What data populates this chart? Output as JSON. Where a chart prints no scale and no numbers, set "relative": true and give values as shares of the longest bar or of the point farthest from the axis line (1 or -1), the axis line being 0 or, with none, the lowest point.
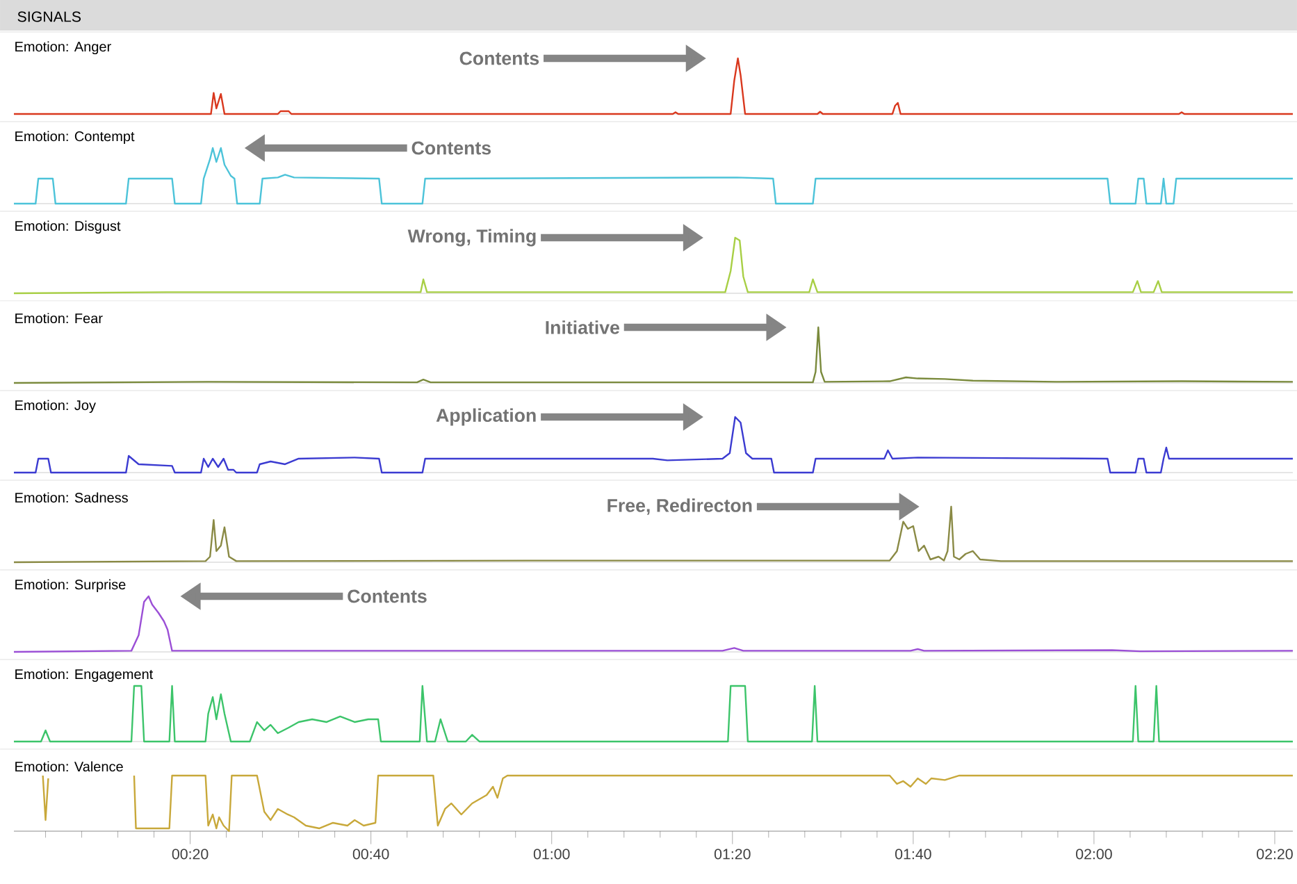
{
  "chart_data": [
    {
      "type": "line",
      "title": "Emotion: Anger",
      "relative": true,
      "tick_labels": false,
      "xlim": [
        0.5,
        142
      ],
      "color": "#d9381e",
      "annotations": [
        "SIGNALS",
        "Contents"
      ],
      "x": [
        0.5,
        22.3,
        22.6,
        22.9,
        23.4,
        23.8,
        29.7,
        30.0,
        30.9,
        31.2,
        73.4,
        73.7,
        74.0,
        79.8,
        80.2,
        80.6,
        80.9,
        81.4,
        89.4,
        89.7,
        90.0,
        97.7,
        98.0,
        98.3,
        98.6,
        129.4,
        129.7,
        130.0,
        142
      ],
      "values": [
        0,
        0,
        0.38,
        0.1,
        0.36,
        0,
        0,
        0.05,
        0.05,
        0,
        0,
        0.03,
        0,
        0,
        0.6,
        1,
        0.7,
        0,
        0,
        0.04,
        0,
        0,
        0.15,
        0.2,
        0,
        0,
        0.03,
        0,
        0
      ]
    },
    {
      "type": "line",
      "title": "Emotion: Contempt",
      "relative": true,
      "tick_labels": false,
      "xlim": [
        0.5,
        142
      ],
      "color": "#4cc3d9",
      "annotations": [
        "Contents"
      ],
      "x": [
        0.5,
        2.9,
        3.2,
        4.8,
        5.1,
        12.9,
        13.2,
        18.0,
        18.3,
        21.2,
        21.5,
        22.2,
        22.5,
        22.9,
        23.4,
        23.8,
        24.5,
        24.9,
        25.2,
        27.7,
        28.0,
        29.7,
        30.5,
        31.5,
        40.9,
        41.2,
        45.7,
        46.0,
        80.5,
        84.5,
        84.8,
        88.9,
        89.2,
        121.5,
        121.8,
        124.6,
        124.9,
        125.5,
        125.8,
        127.4,
        127.7,
        128.0,
        128.8,
        129.1,
        142
      ],
      "values": [
        0,
        0,
        0.45,
        0.45,
        0,
        0,
        0.45,
        0.45,
        0,
        0,
        0.45,
        0.8,
        1,
        0.75,
        1,
        0.7,
        0.5,
        0.45,
        0,
        0,
        0.45,
        0.47,
        0.52,
        0.47,
        0.45,
        0,
        0,
        0.45,
        0.47,
        0.45,
        0,
        0,
        0.45,
        0.45,
        0,
        0,
        0.45,
        0.45,
        0,
        0,
        0.45,
        0,
        0,
        0.45,
        0.45
      ]
    },
    {
      "type": "line",
      "title": "Emotion: Disgust",
      "relative": true,
      "tick_labels": false,
      "xlim": [
        0.5,
        142
      ],
      "color": "#a8cf45",
      "annotations": [
        "Wrong, Timing"
      ],
      "x": [
        0.5,
        17.4,
        45.5,
        45.8,
        46.2,
        79.2,
        79.8,
        80.3,
        80.8,
        81.2,
        81.7,
        88.5,
        88.9,
        89.4,
        124.3,
        124.8,
        125.2,
        126.6,
        127.1,
        127.5,
        142
      ],
      "values": [
        0,
        0.02,
        0.02,
        0.25,
        0.02,
        0.02,
        0.4,
        1,
        0.95,
        0.3,
        0.02,
        0.02,
        0.25,
        0.02,
        0.02,
        0.22,
        0.02,
        0.02,
        0.22,
        0.02,
        0.02
      ]
    },
    {
      "type": "line",
      "title": "Emotion: Fear",
      "relative": true,
      "tick_labels": false,
      "xlim": [
        0.5,
        142
      ],
      "color": "#7a8a3c",
      "annotations": [
        "Initiative"
      ],
      "x": [
        0.5,
        22.0,
        45.1,
        45.8,
        46.6,
        88.9,
        89.2,
        89.5,
        89.8,
        90.2,
        97.4,
        99.2,
        100.5,
        103.5,
        106.6,
        115.8,
        129.7,
        142
      ],
      "values": [
        0,
        0.02,
        0.01,
        0.06,
        0.01,
        0.01,
        0.2,
        1,
        0.2,
        0.02,
        0.03,
        0.1,
        0.08,
        0.07,
        0.04,
        0.02,
        0.03,
        0.02
      ]
    },
    {
      "type": "line",
      "title": "Emotion: Joy",
      "relative": true,
      "tick_labels": false,
      "xlim": [
        0.5,
        142
      ],
      "color": "#3b3bd1",
      "annotations": [
        "Application"
      ],
      "x": [
        0.5,
        2.9,
        3.2,
        4.3,
        4.6,
        12.9,
        13.2,
        14.3,
        18.0,
        18.3,
        21.2,
        21.5,
        22.0,
        22.5,
        23.1,
        23.7,
        24.2,
        24.8,
        25.1,
        27.4,
        27.7,
        28.9,
        30.5,
        32.0,
        38.2,
        40.9,
        41.2,
        45.7,
        46.0,
        71.2,
        72.8,
        78.9,
        79.7,
        80.3,
        80.9,
        81.5,
        82.2,
        84.3,
        84.6,
        88.9,
        89.2,
        96.8,
        97.2,
        97.7,
        100.5,
        121.5,
        121.8,
        124.6,
        124.9,
        125.5,
        125.8,
        127.4,
        127.7,
        128.0,
        128.3,
        142
      ],
      "values": [
        0,
        0,
        0.25,
        0.25,
        0,
        0,
        0.3,
        0.15,
        0.12,
        0,
        0,
        0.25,
        0.1,
        0.25,
        0.1,
        0.25,
        0.05,
        0.05,
        0,
        0,
        0.15,
        0.2,
        0.15,
        0.25,
        0.27,
        0.25,
        0,
        0,
        0.25,
        0.25,
        0.22,
        0.25,
        0.35,
        1,
        0.9,
        0.35,
        0.25,
        0.25,
        0,
        0,
        0.25,
        0.25,
        0.4,
        0.25,
        0.27,
        0.25,
        0,
        0,
        0.25,
        0.25,
        0,
        0,
        0.25,
        0.45,
        0.25,
        0.25
      ]
    },
    {
      "type": "line",
      "title": "Emotion: Sadness",
      "relative": true,
      "tick_labels": false,
      "xlim": [
        0.5,
        142
      ],
      "color": "#8a8a45",
      "annotations": [
        "Free, Redirecton"
      ],
      "x": [
        0.5,
        21.7,
        22.2,
        22.6,
        22.9,
        23.4,
        23.8,
        24.3,
        25.1,
        60.5,
        97.4,
        98.2,
        98.9,
        99.4,
        100.0,
        100.6,
        101.2,
        101.9,
        102.8,
        103.4,
        103.8,
        104.2,
        104.5,
        105.1,
        105.8,
        106.6,
        107.4,
        109.7,
        142
      ],
      "values": [
        0,
        0.02,
        0.1,
        0.76,
        0.2,
        0.3,
        0.63,
        0.1,
        0.02,
        0.03,
        0.03,
        0.2,
        0.73,
        0.6,
        0.65,
        0.2,
        0.3,
        0.05,
        0.1,
        0.03,
        0.2,
        1,
        0.1,
        0.05,
        0.15,
        0.2,
        0.05,
        0.02,
        0.02
      ]
    },
    {
      "type": "line",
      "title": "Emotion: Surprise",
      "relative": true,
      "tick_labels": false,
      "xlim": [
        0.5,
        142
      ],
      "color": "#9b4fd6",
      "annotations": [
        "Contents"
      ],
      "x": [
        0.5,
        13.5,
        14.3,
        14.9,
        15.4,
        15.8,
        16.5,
        17.1,
        17.5,
        18.0,
        45.1,
        78.9,
        80.2,
        81.2,
        99.7,
        100.5,
        101.2,
        122.0,
        125.1,
        142
      ],
      "values": [
        0,
        0.02,
        0.3,
        0.9,
        1,
        0.85,
        0.7,
        0.55,
        0.4,
        0.02,
        0.02,
        0.02,
        0.07,
        0.02,
        0.02,
        0.05,
        0.02,
        0.03,
        0.01,
        0.02
      ]
    },
    {
      "type": "line",
      "title": "Emotion: Engagement",
      "relative": true,
      "tick_labels": false,
      "xlim": [
        0.5,
        142
      ],
      "color": "#3cc46a",
      "x": [
        0.5,
        3.5,
        4.0,
        4.5,
        13.5,
        13.8,
        14.6,
        14.9,
        17.7,
        18.0,
        18.3,
        21.7,
        22.0,
        22.5,
        22.9,
        23.4,
        23.8,
        24.5,
        26.6,
        27.4,
        28.2,
        28.9,
        29.7,
        30.9,
        32.0,
        33.5,
        35.1,
        36.6,
        38.2,
        39.7,
        40.8,
        41.1,
        45.4,
        45.7,
        46.2,
        47.1,
        47.7,
        48.5,
        50.5,
        51.2,
        52.0,
        79.5,
        79.8,
        81.4,
        81.7,
        88.8,
        89.1,
        89.4,
        124.3,
        124.6,
        124.9,
        126.6,
        126.9,
        127.2,
        142
      ],
      "values": [
        0,
        0,
        0.2,
        0,
        0,
        1,
        1,
        0,
        0,
        1,
        0,
        0,
        0.5,
        0.8,
        0.4,
        0.85,
        0.5,
        0,
        0,
        0.35,
        0.2,
        0.3,
        0.15,
        0.25,
        0.35,
        0.4,
        0.35,
        0.45,
        0.35,
        0.4,
        0.4,
        0,
        0,
        1,
        0,
        0,
        0.4,
        0,
        0,
        0.12,
        0,
        0,
        1,
        1,
        0,
        0,
        1,
        0,
        0,
        1,
        0,
        0,
        1,
        0,
        0
      ]
    },
    {
      "type": "line",
      "title": "Emotion: Valence",
      "relative": true,
      "tick_labels": "x",
      "xlim": [
        0.5,
        142
      ],
      "color": "#c8a83a",
      "xticks": [
        {
          "value": 4,
          "label": null
        },
        {
          "value": 8,
          "label": null
        },
        {
          "value": 12,
          "label": null
        },
        {
          "value": 16,
          "label": null
        },
        {
          "value": 20,
          "label": "00:20"
        },
        {
          "value": 24,
          "label": null
        },
        {
          "value": 28,
          "label": null
        },
        {
          "value": 32,
          "label": null
        },
        {
          "value": 36,
          "label": null
        },
        {
          "value": 40,
          "label": "00:40"
        },
        {
          "value": 44,
          "label": null
        },
        {
          "value": 48,
          "label": null
        },
        {
          "value": 52,
          "label": null
        },
        {
          "value": 56,
          "label": null
        },
        {
          "value": 60,
          "label": "01:00"
        },
        {
          "value": 64,
          "label": null
        },
        {
          "value": 68,
          "label": null
        },
        {
          "value": 72,
          "label": null
        },
        {
          "value": 76,
          "label": null
        },
        {
          "value": 80,
          "label": "01:20"
        },
        {
          "value": 84,
          "label": null
        },
        {
          "value": 88,
          "label": null
        },
        {
          "value": 92,
          "label": null
        },
        {
          "value": 96,
          "label": null
        },
        {
          "value": 100,
          "label": "01:40"
        },
        {
          "value": 104,
          "label": null
        },
        {
          "value": 108,
          "label": null
        },
        {
          "value": 112,
          "label": null
        },
        {
          "value": 116,
          "label": null
        },
        {
          "value": 120,
          "label": "02:00"
        },
        {
          "value": 124,
          "label": null
        },
        {
          "value": 128,
          "label": null
        },
        {
          "value": 132,
          "label": null
        },
        {
          "value": 136,
          "label": null
        },
        {
          "value": 140,
          "label": "02:20"
        }
      ],
      "x": [
        3.7,
        4.0,
        4.3,
        9.0,
        13.8,
        14.0,
        17.7,
        18.0,
        21.7,
        22.0,
        22.5,
        22.9,
        23.2,
        23.7,
        24.3,
        24.6,
        27.4,
        28.2,
        28.9,
        29.7,
        30.8,
        31.5,
        32.8,
        34.3,
        35.8,
        37.4,
        38.2,
        39.2,
        40.5,
        40.8,
        46.9,
        47.4,
        48.2,
        48.9,
        50.0,
        51.2,
        52.8,
        53.5,
        54.0,
        54.6,
        55.1,
        97.4,
        98.2,
        98.9,
        99.7,
        100.5,
        101.4,
        102.0,
        103.5,
        105.1,
        142
      ],
      "values": [
        1,
        0.2,
        0.95,
        null,
        1,
        0.05,
        0.05,
        1,
        1,
        0.1,
        0.3,
        0.05,
        0.25,
        0.1,
        0,
        1,
        1,
        0.35,
        0.2,
        0.4,
        0.3,
        0.25,
        0.1,
        0.05,
        0.15,
        0.1,
        0.2,
        0.1,
        0.15,
        1,
        1,
        0.1,
        0.4,
        0.5,
        0.3,
        0.5,
        0.65,
        0.8,
        0.6,
        0.95,
        1,
        1,
        0.85,
        0.9,
        0.8,
        0.95,
        0.85,
        0.95,
        0.92,
        1,
        1
      ]
    }
  ]
}
